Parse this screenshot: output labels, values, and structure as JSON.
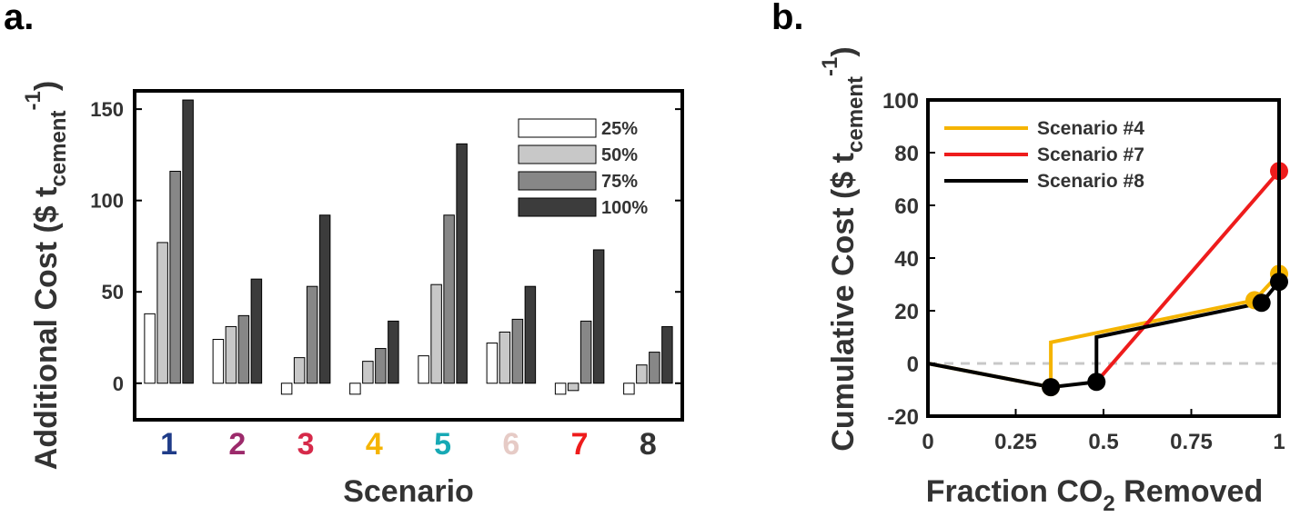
{
  "panel_a_label": "a.",
  "panel_b_label": "b.",
  "chart_data": [
    {
      "type": "bar",
      "panel": "a.",
      "xlabel": "Scenario",
      "ylabel_main": "Additional Cost ($ t",
      "ylabel_sub": "cement",
      "ylabel_sup": "-1",
      "ylabel_close": ")",
      "ylim": [
        -20,
        160
      ],
      "yticks": [
        0,
        50,
        100,
        150
      ],
      "categories": [
        "1",
        "2",
        "3",
        "4",
        "5",
        "6",
        "7",
        "8"
      ],
      "category_colors": [
        "#1f3c88",
        "#9c2a6b",
        "#d62a4a",
        "#f5b400",
        "#17a9b5",
        "#e6cbc6",
        "#ee1c1c",
        "#333333"
      ],
      "legend_position": "top-right",
      "series": [
        {
          "name": "25%",
          "color": "#ffffff",
          "values": [
            38,
            24,
            -6,
            -6,
            15,
            22,
            -6,
            -6
          ]
        },
        {
          "name": "50%",
          "color": "#c8c8c8",
          "values": [
            77,
            31,
            14,
            12,
            54,
            28,
            -4,
            10
          ]
        },
        {
          "name": "75%",
          "color": "#878787",
          "values": [
            116,
            37,
            53,
            19,
            92,
            35,
            34,
            17
          ]
        },
        {
          "name": "100%",
          "color": "#3c3c3c",
          "values": [
            155,
            57,
            92,
            34,
            131,
            53,
            73,
            31
          ]
        }
      ]
    },
    {
      "type": "line",
      "panel": "b.",
      "xlabel_main": "Fraction CO",
      "xlabel_sub": "2",
      "xlabel_end": " Removed",
      "ylabel_main": "Cumulative Cost ($ t",
      "ylabel_sub": "cement",
      "ylabel_sup": "-1",
      "ylabel_close": ")",
      "xlim": [
        0,
        1
      ],
      "ylim": [
        -20,
        100
      ],
      "xticks": [
        "0",
        "0.25",
        "0.5",
        "0.75",
        "1"
      ],
      "xtick_values": [
        0,
        0.25,
        0.5,
        0.75,
        1
      ],
      "yticks": [
        -20,
        0,
        20,
        40,
        60,
        80,
        100
      ],
      "zero_line": "dashed",
      "legend_position": "top-left",
      "series": [
        {
          "name": "Scenario #4",
          "color": "#f5b400",
          "x": [
            0,
            0.35,
            0.35,
            0.93,
            1.0
          ],
          "y": [
            0,
            -9,
            8,
            24,
            34
          ],
          "markers": [
            [
              0.35,
              -9
            ],
            [
              0.93,
              24
            ],
            [
              1.0,
              34
            ]
          ]
        },
        {
          "name": "Scenario #7",
          "color": "#ee1c1c",
          "x": [
            0.48,
            1.0
          ],
          "y": [
            -7,
            73
          ],
          "markers": [
            [
              1.0,
              73
            ]
          ]
        },
        {
          "name": "Scenario #8",
          "color": "#000000",
          "x": [
            0,
            0.35,
            0.48,
            0.48,
            0.95,
            1.0
          ],
          "y": [
            0,
            -9,
            -7,
            10,
            23,
            31
          ],
          "markers": [
            [
              0.35,
              -9
            ],
            [
              0.48,
              -7
            ],
            [
              0.95,
              23
            ],
            [
              1.0,
              31
            ]
          ]
        }
      ]
    }
  ]
}
